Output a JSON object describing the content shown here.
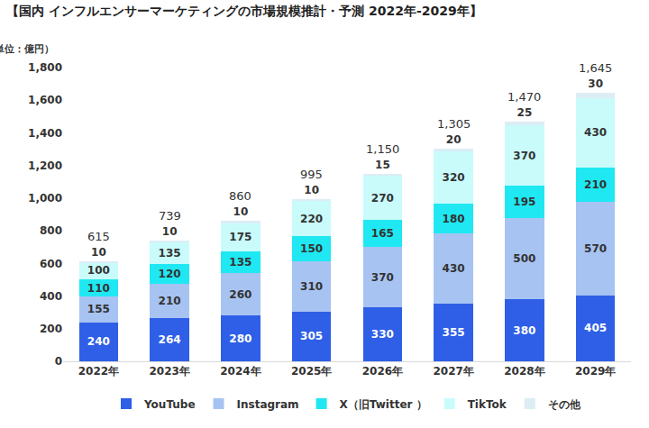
{
  "chart_data": {
    "type": "bar",
    "title": "【国内 インフルエンサーマーケティングの市場規模推計・予測 2022年-2029年】",
    "subtitle": "（単位：億円）",
    "categories": [
      "2022年",
      "2023年",
      "2024年",
      "2025年",
      "2026年",
      "2027年",
      "2028年",
      "2029年"
    ],
    "series": [
      {
        "name": "YouTube",
        "color": "#2e5fe6",
        "values": [
          240,
          264,
          280,
          305,
          330,
          355,
          380,
          405
        ]
      },
      {
        "name": "Instagram",
        "color": "#a7c3f2",
        "values": [
          155,
          210,
          260,
          310,
          370,
          430,
          500,
          570
        ]
      },
      {
        "name": "X（旧Twitter ）",
        "color": "#1fe8f2",
        "values": [
          110,
          120,
          135,
          150,
          165,
          180,
          195,
          210
        ]
      },
      {
        "name": "TikTok",
        "color": "#c9fbfb",
        "values": [
          100,
          135,
          175,
          220,
          270,
          320,
          370,
          430
        ]
      },
      {
        "name": "その他",
        "color": "#dcedf4",
        "values": [
          10,
          10,
          10,
          10,
          15,
          20,
          25,
          30
        ]
      }
    ],
    "totals": {
      "values": [
        615,
        739,
        860,
        995,
        1150,
        1305,
        1470,
        1645
      ],
      "value_labels": [
        "615",
        "739",
        "860",
        "995",
        "1,150",
        "1,305",
        "1,470",
        "1,645"
      ]
    },
    "ylim": [
      0,
      1800
    ],
    "yticks": [
      0,
      200,
      400,
      600,
      800,
      {
        "value": 1000,
        "label": "1,000"
      },
      {
        "value": 1200,
        "label": "1,200"
      },
      {
        "value": 1400,
        "label": "1,400"
      },
      {
        "value": 1600,
        "label": "1,600"
      },
      {
        "value": 1800,
        "label": "1,800"
      }
    ],
    "stacked": true,
    "data_labels": true,
    "grid": false,
    "legend": "bottom"
  }
}
